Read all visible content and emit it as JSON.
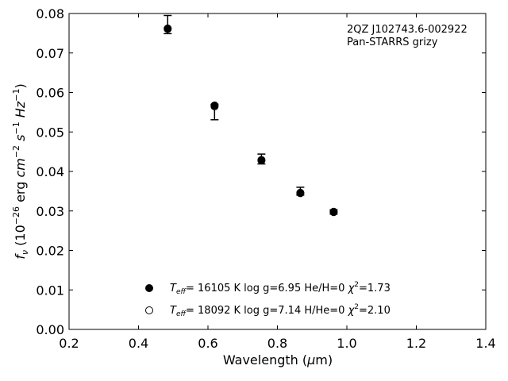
{
  "chart_data": {
    "type": "scatter",
    "annotation": [
      "2QZ J102743.6-002922",
      "Pan-STARRS grizy"
    ],
    "xlabel": "Wavelength (μm)",
    "ylabel": "f_ν (10^−26 erg cm^−2 s^−1 Hz^−1)",
    "xlim": [
      0.2,
      1.4
    ],
    "ylim": [
      0.0,
      0.08
    ],
    "x_ticks": [
      "0.2",
      "0.4",
      "0.6",
      "0.8",
      "1.0",
      "1.2",
      "1.4"
    ],
    "y_ticks": [
      "0.00",
      "0.01",
      "0.02",
      "0.03",
      "0.04",
      "0.05",
      "0.06",
      "0.07",
      "0.08"
    ],
    "grid": false,
    "legend_position": "bottom-center",
    "series": [
      {
        "name": "Teff= 16105 K  log g=6.95  He/H=0  χ2=1.73",
        "marker": "filled-circle",
        "color": "#000000",
        "points": [
          {
            "x": 0.484,
            "y": 0.0761,
            "yerr_low": 0.0012,
            "yerr_high": 0.0034
          },
          {
            "x": 0.619,
            "y": 0.0567,
            "yerr_low": 0.0036,
            "yerr_high": 0.0003
          },
          {
            "x": 0.754,
            "y": 0.0428,
            "yerr_low": 0.0009,
            "yerr_high": 0.0016
          },
          {
            "x": 0.866,
            "y": 0.0346,
            "yerr_low": 0.0006,
            "yerr_high": 0.0014
          },
          {
            "x": 0.962,
            "y": 0.0298,
            "yerr_low": 0.0006,
            "yerr_high": 0.0005
          }
        ]
      },
      {
        "name": "Teff= 18092 K  log g=7.14  H/He=0  χ2=2.10",
        "marker": "open-circle",
        "color": "#000000",
        "points": [
          {
            "x": 0.484,
            "y": 0.0762
          },
          {
            "x": 0.619,
            "y": 0.0565
          },
          {
            "x": 0.754,
            "y": 0.0429
          },
          {
            "x": 0.866,
            "y": 0.0345
          },
          {
            "x": 0.962,
            "y": 0.0297
          }
        ]
      }
    ]
  }
}
